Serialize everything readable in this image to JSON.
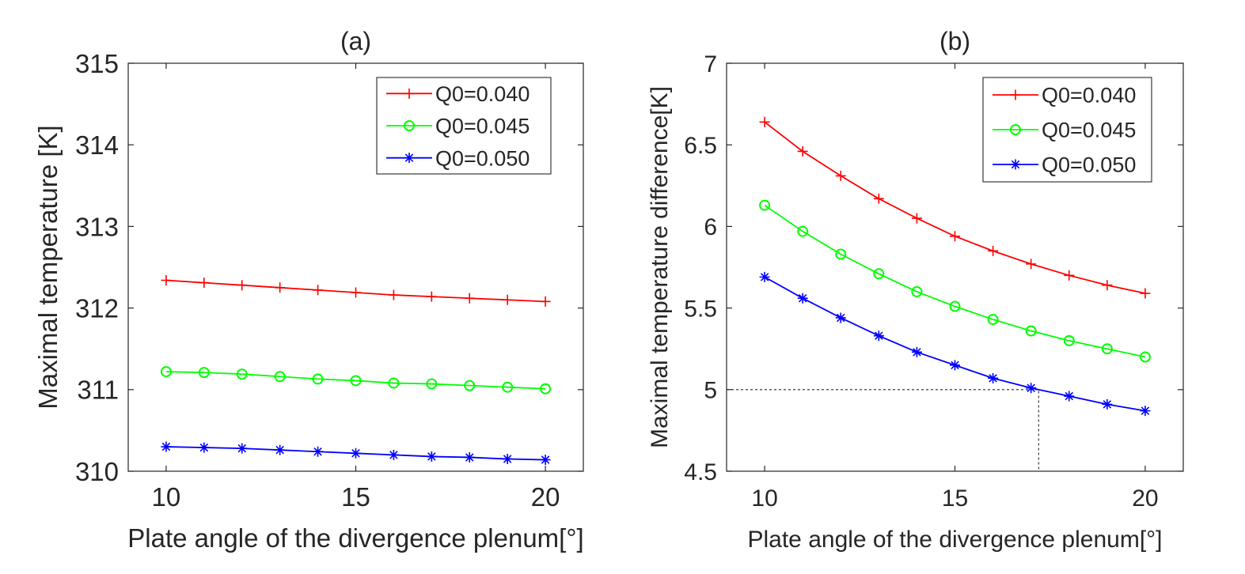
{
  "chart_data": [
    {
      "type": "line",
      "panel_title": "(a)",
      "xlabel": "Plate  angle of the divergence plenum[°]",
      "ylabel": "Maximal temperature [K]",
      "xlim": [
        9,
        21
      ],
      "ylim": [
        310,
        315
      ],
      "xticks": [
        10,
        15,
        20
      ],
      "yticks": [
        310,
        311,
        312,
        313,
        314,
        315
      ],
      "grid": false,
      "legend_position": "top-right",
      "x": [
        10,
        11,
        12,
        13,
        14,
        15,
        16,
        17,
        18,
        19,
        20
      ],
      "series": [
        {
          "name": "Q0=0.040",
          "color": "#ff0000",
          "marker": "plus",
          "values": [
            312.34,
            312.31,
            312.28,
            312.25,
            312.22,
            312.19,
            312.16,
            312.14,
            312.12,
            312.1,
            312.08
          ]
        },
        {
          "name": "Q0=0.045",
          "color": "#00ff00",
          "marker": "circle",
          "values": [
            311.22,
            311.21,
            311.19,
            311.16,
            311.13,
            311.11,
            311.08,
            311.07,
            311.05,
            311.03,
            311.01
          ]
        },
        {
          "name": "Q0=0.050",
          "color": "#0000ff",
          "marker": "asterisk",
          "values": [
            310.3,
            310.29,
            310.28,
            310.26,
            310.24,
            310.22,
            310.2,
            310.18,
            310.17,
            310.15,
            310.14
          ]
        }
      ]
    },
    {
      "type": "line",
      "panel_title": "(b)",
      "xlabel": "Plate angle of the divergence plenum[°]",
      "ylabel": "Maximal temperature difference[K]",
      "xlim": [
        9,
        21
      ],
      "ylim": [
        4.5,
        7
      ],
      "xticks": [
        10,
        15,
        20
      ],
      "yticks": [
        4.5,
        5,
        5.5,
        6,
        6.5,
        7
      ],
      "ytick_labels": [
        "4.5",
        "5",
        "5.5",
        "6",
        "6.5",
        "7"
      ],
      "grid": false,
      "legend_position": "top-right",
      "x": [
        10,
        11,
        12,
        13,
        14,
        15,
        16,
        17,
        18,
        19,
        20
      ],
      "series": [
        {
          "name": "Q0=0.040",
          "color": "#ff0000",
          "marker": "plus",
          "values": [
            6.64,
            6.46,
            6.31,
            6.17,
            6.05,
            5.94,
            5.85,
            5.77,
            5.7,
            5.64,
            5.59
          ]
        },
        {
          "name": "Q0=0.045",
          "color": "#00ff00",
          "marker": "circle",
          "values": [
            6.13,
            5.97,
            5.83,
            5.71,
            5.6,
            5.51,
            5.43,
            5.36,
            5.3,
            5.25,
            5.2
          ]
        },
        {
          "name": "Q0=0.050",
          "color": "#0000ff",
          "marker": "asterisk",
          "values": [
            5.69,
            5.56,
            5.44,
            5.33,
            5.23,
            5.15,
            5.07,
            5.01,
            4.96,
            4.91,
            4.87
          ]
        }
      ],
      "reference_lines": {
        "y": 5,
        "x": 17.2
      }
    }
  ]
}
